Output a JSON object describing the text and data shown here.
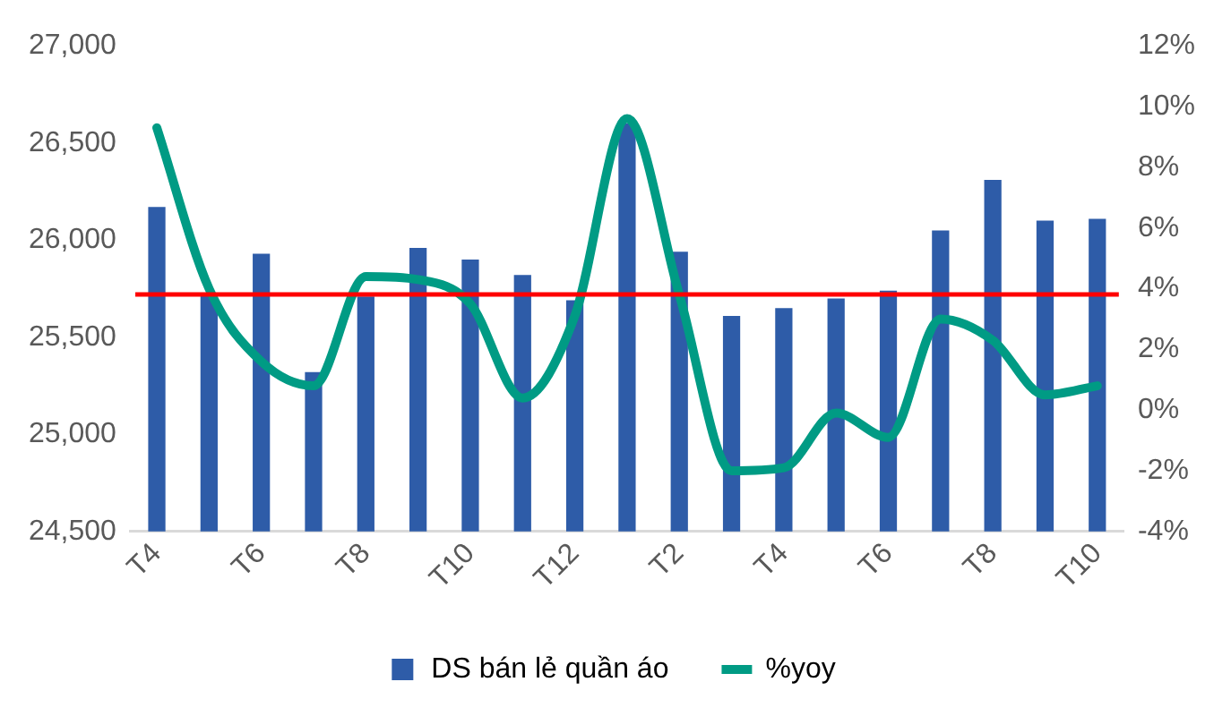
{
  "chart_data": {
    "type": "bar",
    "categories": [
      "T4",
      null,
      "T6",
      null,
      "T8",
      null,
      "T10",
      null,
      "T12",
      null,
      "T2",
      null,
      "T4",
      null,
      "T6",
      null,
      "T8",
      null,
      "T10"
    ],
    "series": [
      {
        "name": "DS bán lẻ quần áo",
        "color": "#2e5ca8",
        "values": [
          26170,
          25720,
          25930,
          25320,
          25710,
          25960,
          25900,
          25820,
          25690,
          26600,
          25940,
          25610,
          25650,
          25700,
          25740,
          26050,
          26310,
          26100,
          26110
        ]
      },
      {
        "name": "%yoy",
        "type": "line",
        "axis": "y2",
        "color": "#009b84",
        "values": [
          9.3,
          4.0,
          1.6,
          0.8,
          4.4,
          4.3,
          3.5,
          0.4,
          3.1,
          9.6,
          3.8,
          -2.0,
          -1.9,
          -0.1,
          -0.9,
          3.0,
          2.3,
          0.5,
          0.8
        ]
      }
    ],
    "ylim": [
      24500,
      27000
    ],
    "yticks": [
      {
        "value": 24500,
        "label": "24,500"
      },
      {
        "value": 25000,
        "label": "25,000"
      },
      {
        "value": 25500,
        "label": "25,500"
      },
      {
        "value": 26000,
        "label": "26,000"
      },
      {
        "value": 26500,
        "label": "26,500"
      },
      {
        "value": 27000,
        "label": "27,000"
      }
    ],
    "y2lim": [
      -4,
      12
    ],
    "y2ticks": [
      {
        "value": -4,
        "label": "-4%"
      },
      {
        "value": -2,
        "label": "-2%"
      },
      {
        "value": 0,
        "label": "0%"
      },
      {
        "value": 2,
        "label": "2%"
      },
      {
        "value": 4,
        "label": "4%"
      },
      {
        "value": 6,
        "label": "6%"
      },
      {
        "value": 8,
        "label": "8%"
      },
      {
        "value": 10,
        "label": "10%"
      },
      {
        "value": 12,
        "label": "12%"
      }
    ],
    "ref_lines": [
      {
        "axis": "y",
        "value": 25720,
        "color": "#ff0000"
      }
    ],
    "grid": false,
    "legend": "bottom",
    "marker": "none",
    "line_style": "solid"
  }
}
